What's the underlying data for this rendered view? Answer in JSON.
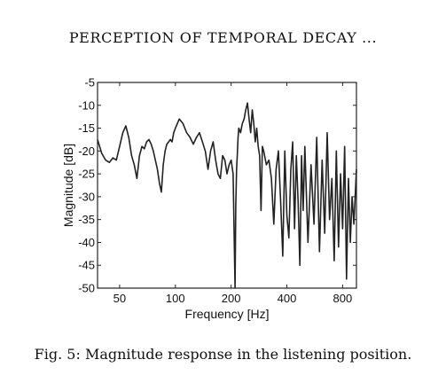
{
  "header": {
    "running_title": "PERCEPTION OF TEMPORAL DECAY ..."
  },
  "caption": "Fig. 5: Magnitude response in the listening position.",
  "chart_data": {
    "type": "line",
    "title": "",
    "xlabel": "Frequency [Hz]",
    "ylabel": "Magnitude [dB]",
    "x_scale": "log",
    "xlim": [
      38,
      950
    ],
    "ylim": [
      -50,
      -5
    ],
    "xticks": [
      50,
      100,
      200,
      400,
      800
    ],
    "xtick_labels": [
      "50",
      "100",
      "200",
      "400",
      "800"
    ],
    "yticks": [
      -5,
      -10,
      -15,
      -20,
      -25,
      -30,
      -35,
      -40,
      -45,
      -50
    ],
    "ytick_labels": [
      "-5",
      "-10",
      "-15",
      "-20",
      "-25",
      "-30",
      "-35",
      "-40",
      "-45",
      "-50"
    ],
    "grid": false,
    "line_color": "#222222",
    "series": [
      {
        "x": [
          38,
          40,
          42,
          44,
          46,
          48,
          50,
          52,
          54,
          56,
          58,
          60,
          62,
          64,
          66,
          68,
          70,
          72,
          74,
          76,
          78,
          80,
          82,
          84,
          86,
          88,
          90,
          92,
          94,
          96,
          98,
          100,
          105,
          110,
          115,
          120,
          125,
          130,
          135,
          140,
          145,
          150,
          155,
          160,
          165,
          170,
          175,
          180,
          185,
          190,
          195,
          200,
          205,
          210,
          212,
          214,
          216,
          218,
          220,
          225,
          230,
          235,
          240,
          245,
          250,
          255,
          260,
          265,
          270,
          275,
          280,
          285,
          290,
          295,
          300,
          310,
          320,
          330,
          340,
          350,
          360,
          370,
          380,
          390,
          400,
          410,
          420,
          430,
          440,
          450,
          460,
          470,
          480,
          490,
          500,
          520,
          540,
          560,
          580,
          600,
          620,
          640,
          660,
          680,
          700,
          720,
          740,
          760,
          780,
          800,
          820,
          840,
          860,
          880,
          900,
          920,
          950
        ],
        "y": [
          -17.5,
          -20.5,
          -22,
          -22.5,
          -21.5,
          -22,
          -19,
          -16,
          -14.5,
          -17,
          -21,
          -23,
          -26,
          -21,
          -19,
          -19.5,
          -18,
          -17.5,
          -18.5,
          -20,
          -22,
          -24,
          -27,
          -29,
          -23,
          -20,
          -18.5,
          -18,
          -17.5,
          -18,
          -16,
          -15,
          -13,
          -14,
          -16,
          -17,
          -18.5,
          -17,
          -16,
          -18,
          -20,
          -24,
          -20,
          -18,
          -22,
          -25,
          -26,
          -21,
          -22,
          -25,
          -23,
          -22,
          -25,
          -50,
          -32,
          -24,
          -21,
          -17,
          -15,
          -16,
          -14,
          -13,
          -11,
          -9.5,
          -13,
          -16,
          -11,
          -14,
          -18,
          -15,
          -19,
          -21,
          -33,
          -19,
          -20,
          -23,
          -22,
          -26,
          -36,
          -24,
          -20,
          -31,
          -43,
          -20,
          -34,
          -39,
          -24,
          -18,
          -37,
          -21,
          -31,
          -45,
          -21,
          -33,
          -19,
          -40,
          -23,
          -36,
          -17,
          -42,
          -22,
          -38,
          -16,
          -35,
          -26,
          -44,
          -20,
          -41,
          -25,
          -37,
          -19,
          -48,
          -26,
          -40,
          -30,
          -36,
          -24
        ]
      }
    ]
  }
}
